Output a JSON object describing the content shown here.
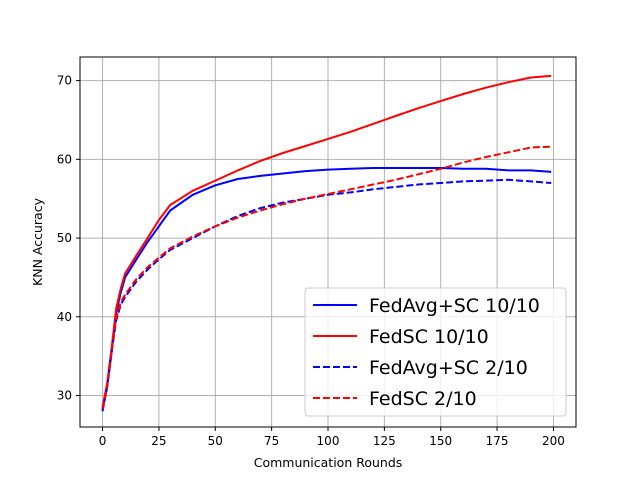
{
  "chart_data": {
    "type": "line",
    "title": "",
    "xlabel": "Communication Rounds",
    "ylabel": "KNN Accuracy",
    "xlim": [
      -10,
      210
    ],
    "ylim": [
      26,
      73
    ],
    "xticks": [
      0,
      25,
      50,
      75,
      100,
      125,
      150,
      175,
      200
    ],
    "yticks": [
      30,
      40,
      50,
      60,
      70
    ],
    "grid": true,
    "legend_position": "bottom-right",
    "series": [
      {
        "name": "FedAvg+SC 10/10",
        "color": "#0000ff",
        "style": "solid",
        "x": [
          0,
          2,
          4,
          6,
          8,
          10,
          15,
          20,
          25,
          30,
          40,
          50,
          60,
          70,
          80,
          90,
          100,
          110,
          120,
          130,
          140,
          150,
          160,
          170,
          180,
          190,
          199
        ],
        "y": [
          28.2,
          31.0,
          35.5,
          40.5,
          43.0,
          45.0,
          47.3,
          49.5,
          51.5,
          53.5,
          55.5,
          56.7,
          57.5,
          57.9,
          58.2,
          58.5,
          58.7,
          58.8,
          58.9,
          58.9,
          58.9,
          58.9,
          58.8,
          58.8,
          58.6,
          58.6,
          58.4
        ]
      },
      {
        "name": "FedSC 10/10",
        "color": "#ff0000",
        "style": "solid",
        "x": [
          0,
          2,
          4,
          6,
          8,
          10,
          15,
          20,
          25,
          30,
          40,
          50,
          60,
          70,
          80,
          90,
          100,
          110,
          120,
          130,
          140,
          150,
          160,
          170,
          180,
          190,
          199
        ],
        "y": [
          28.5,
          31.5,
          36.0,
          41.0,
          43.5,
          45.5,
          47.8,
          50.0,
          52.3,
          54.2,
          56.0,
          57.3,
          58.6,
          59.8,
          60.8,
          61.7,
          62.6,
          63.5,
          64.5,
          65.5,
          66.5,
          67.4,
          68.3,
          69.1,
          69.8,
          70.4,
          70.6
        ]
      },
      {
        "name": "FedAvg+SC 2/10",
        "color": "#0000ff",
        "style": "dashed",
        "x": [
          0,
          2,
          4,
          6,
          8,
          10,
          15,
          20,
          25,
          30,
          40,
          50,
          60,
          70,
          80,
          90,
          100,
          110,
          120,
          130,
          140,
          150,
          160,
          170,
          180,
          190,
          199
        ],
        "y": [
          28.0,
          31.0,
          35.5,
          39.5,
          41.5,
          42.5,
          44.5,
          46.0,
          47.3,
          48.5,
          50.0,
          51.5,
          52.8,
          53.8,
          54.5,
          55.0,
          55.5,
          55.8,
          56.2,
          56.5,
          56.8,
          57.0,
          57.2,
          57.3,
          57.4,
          57.2,
          57.0
        ]
      },
      {
        "name": "FedSC 2/10",
        "color": "#ff0000",
        "style": "dashed",
        "x": [
          0,
          2,
          4,
          6,
          8,
          10,
          15,
          20,
          25,
          30,
          40,
          50,
          60,
          70,
          80,
          90,
          100,
          110,
          120,
          130,
          140,
          150,
          160,
          170,
          180,
          190,
          199
        ],
        "y": [
          28.3,
          31.2,
          35.8,
          39.8,
          41.8,
          42.8,
          44.8,
          46.3,
          47.5,
          48.7,
          50.2,
          51.5,
          52.6,
          53.5,
          54.3,
          55.0,
          55.6,
          56.2,
          56.8,
          57.4,
          58.1,
          58.8,
          59.6,
          60.3,
          60.9,
          61.5,
          61.6
        ]
      }
    ]
  }
}
